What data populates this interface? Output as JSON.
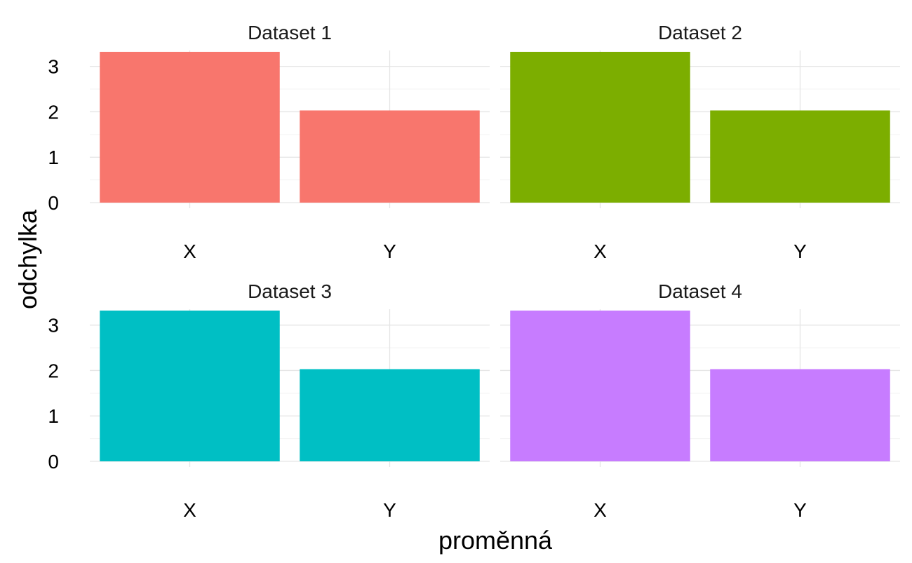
{
  "chart_data": {
    "type": "bar",
    "xlabel": "proměnná",
    "ylabel": "odchylka",
    "ylim": [
      0,
      3.35
    ],
    "yticks": [
      0,
      1,
      2,
      3
    ],
    "grid": true,
    "legend": "none",
    "categories": [
      "X",
      "Y"
    ],
    "panels": [
      {
        "title": "Dataset 1",
        "color": "#F8766D",
        "values": [
          3.32,
          2.03
        ]
      },
      {
        "title": "Dataset 2",
        "color": "#7CAE00",
        "values": [
          3.32,
          2.03
        ]
      },
      {
        "title": "Dataset 3",
        "color": "#00BFC4",
        "values": [
          3.32,
          2.03
        ]
      },
      {
        "title": "Dataset 4",
        "color": "#C77CFF",
        "values": [
          3.32,
          2.03
        ]
      }
    ]
  }
}
